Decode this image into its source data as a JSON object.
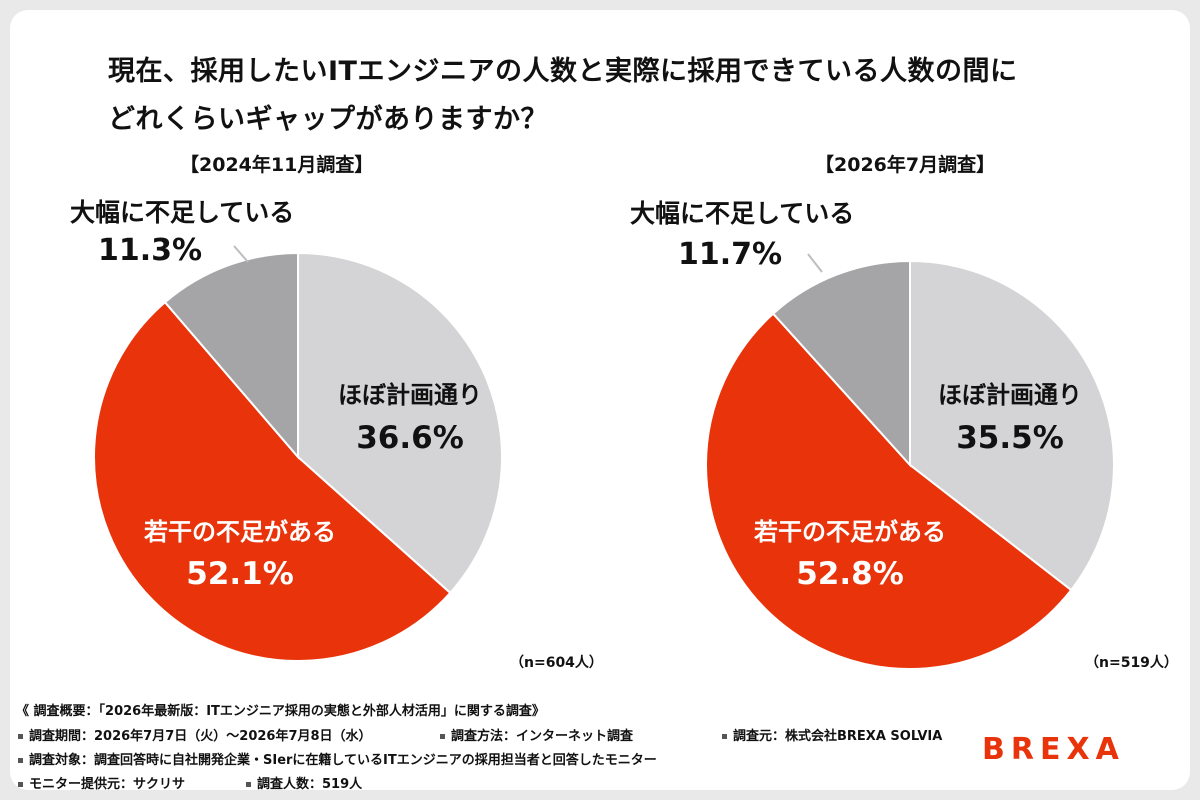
{
  "title_line1": "現在、採用したいITエンジニアの人数と実際に採用できている人数の間に",
  "title_line2": "どれくらいギャップがありますか？",
  "chart_data": [
    {
      "type": "pie",
      "title": "【2024年11月調査】",
      "n_note": "（n=604人）",
      "slices": [
        {
          "label": "ほぼ計画通り",
          "value": 36.6,
          "display": "36.6%",
          "color": "#d4d4d6"
        },
        {
          "label": "若干の不足がある",
          "value": 52.1,
          "display": "52.1%",
          "color": "#e8330b"
        },
        {
          "label": "大幅に不足している",
          "value": 11.3,
          "display": "11.3%",
          "color": "#a5a5a8"
        }
      ]
    },
    {
      "type": "pie",
      "title": "【2026年7月調査】",
      "n_note": "（n=519人）",
      "slices": [
        {
          "label": "ほぼ計画通り",
          "value": 35.5,
          "display": "35.5%",
          "color": "#d4d4d6"
        },
        {
          "label": "若干の不足がある",
          "value": 52.8,
          "display": "52.8%",
          "color": "#e8330b"
        },
        {
          "label": "大幅に不足している",
          "value": 11.7,
          "display": "11.7%",
          "color": "#a5a5a8"
        }
      ]
    }
  ],
  "footer": {
    "overview": "《 調査概要：「2026年最新版：ITエンジニア採用の実態と外部人材活用」に関する調査》",
    "period": "調査期間：2026年7月7日（火）～2026年7月8日（水）",
    "method": "調査方法：インターネット調査",
    "source": "調査元：株式会社BREXA SOLVIA",
    "target": "調査対象：調査回答時に自社開発企業・SIerに在籍しているITエンジニアの採用担当者と回答したモニター",
    "provider": "モニター提供元：サクリサ",
    "count": "調査人数：519人"
  },
  "logo_text": "BREXA"
}
